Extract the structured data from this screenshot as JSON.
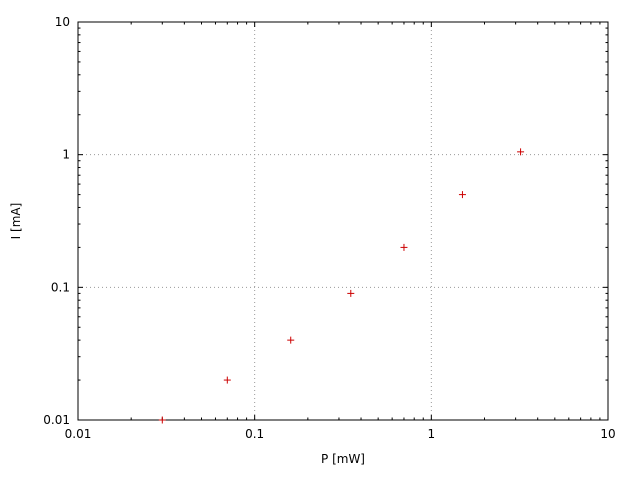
{
  "chart_data": {
    "type": "scatter",
    "scale": "log-log",
    "title": "",
    "xlabel": "P [mW]",
    "ylabel": "I [mA]",
    "xlim": [
      0.01,
      10
    ],
    "ylim": [
      0.01,
      10
    ],
    "xticks": {
      "values": [
        0.01,
        0.1,
        1,
        10
      ],
      "labels": [
        "0.01",
        "0.1",
        "1",
        "10"
      ]
    },
    "yticks": {
      "values": [
        0.01,
        0.1,
        1,
        10
      ],
      "labels": [
        "0.01",
        "0.1",
        "1",
        "10"
      ]
    },
    "grid": true,
    "legend": "none",
    "marker": {
      "shape": "plus",
      "color": "#cc0000",
      "size": 7
    },
    "colors": {
      "border": "#000000",
      "grid": "#9a9a9a",
      "background": "#ffffff"
    },
    "points": [
      {
        "x": 0.03,
        "y": 0.01
      },
      {
        "x": 0.07,
        "y": 0.02
      },
      {
        "x": 0.16,
        "y": 0.04
      },
      {
        "x": 0.35,
        "y": 0.09
      },
      {
        "x": 0.7,
        "y": 0.2
      },
      {
        "x": 1.5,
        "y": 0.5
      },
      {
        "x": 3.2,
        "y": 1.05
      }
    ]
  }
}
